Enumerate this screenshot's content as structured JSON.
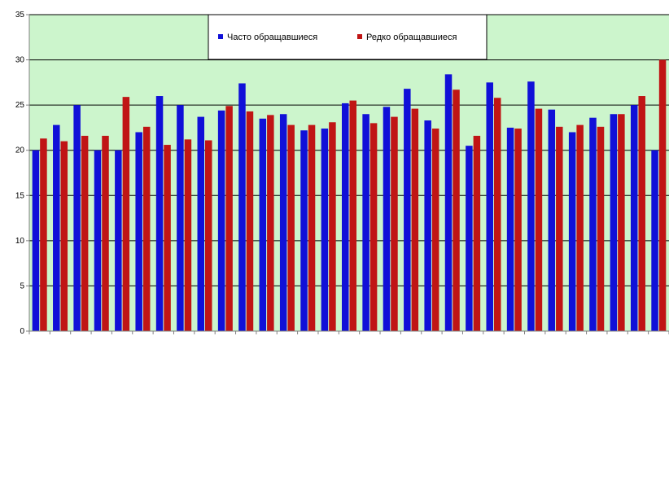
{
  "chart_data": {
    "type": "bar",
    "title": "",
    "xlabel": "",
    "ylabel": "",
    "ylim": [
      0,
      35
    ],
    "yticks": [
      0,
      5,
      10,
      15,
      20,
      25,
      30,
      35
    ],
    "grid": true,
    "legend_position": "top-center",
    "categories": [
      "",
      "",
      "",
      "",
      "",
      "",
      "",
      "",
      "",
      "",
      "",
      "",
      "",
      "",
      "",
      "",
      "",
      "",
      "",
      "",
      "",
      "",
      "",
      "",
      "",
      "",
      "",
      "",
      "",
      "",
      ""
    ],
    "series": [
      {
        "name": "Часто обращавшиеся",
        "color": "#1010d8",
        "values": [
          20.0,
          22.8,
          25.0,
          20.0,
          20.0,
          22.0,
          26.0,
          25.0,
          23.7,
          24.4,
          27.4,
          23.5,
          24.0,
          22.2,
          22.4,
          25.2,
          24.0,
          24.8,
          26.8,
          23.3,
          28.4,
          20.5,
          27.5,
          22.5,
          27.6,
          24.5,
          22.0,
          23.6,
          24.0,
          25.0,
          20.0
        ]
      },
      {
        "name": "Редко обращавшиеся",
        "color": "#c01515",
        "values": [
          21.3,
          21.0,
          21.6,
          21.6,
          25.9,
          22.6,
          20.6,
          21.2,
          21.1,
          24.9,
          24.3,
          23.9,
          22.8,
          22.8,
          23.1,
          25.5,
          23.0,
          23.7,
          24.6,
          22.4,
          26.7,
          21.6,
          25.8,
          22.4,
          24.6,
          22.6,
          22.8,
          22.6,
          24.0,
          26.0,
          30.0
        ]
      }
    ]
  },
  "style": {
    "plot_background": "#ccf5cc",
    "gridline_color": "#000000",
    "axis_color": "#808080"
  }
}
